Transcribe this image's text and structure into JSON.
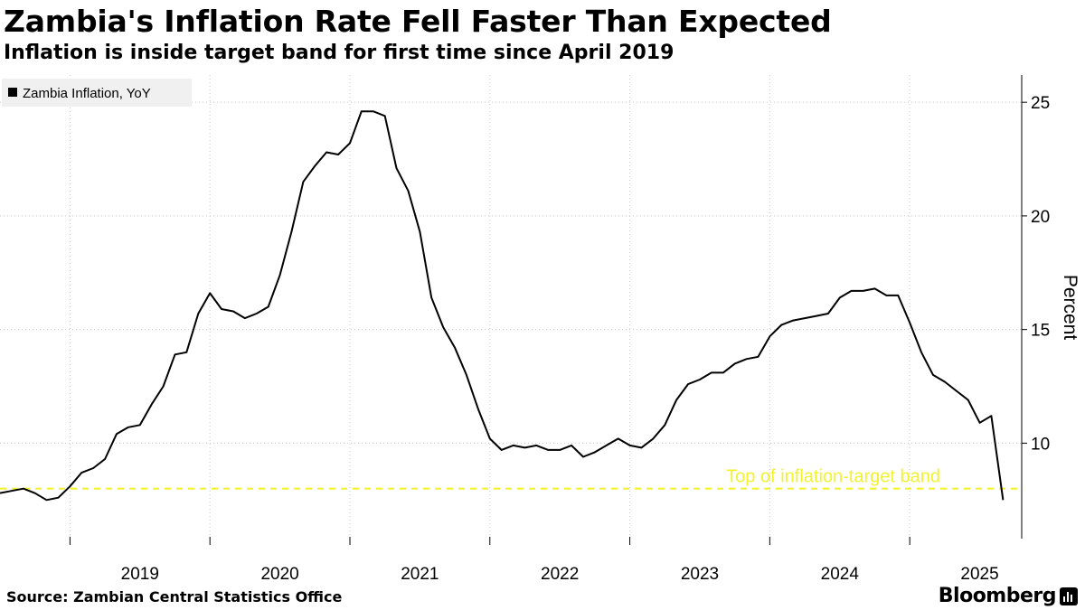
{
  "header": {
    "title": "Zambia's Inflation Rate Fell Faster Than Expected",
    "subtitle": "Inflation is inside target band for first time since April 2019"
  },
  "footer": {
    "source": "Source: Zambian Central Statistics Office",
    "brand": "Bloomberg"
  },
  "colors": {
    "line": "#000000",
    "target_band": "#f2f230",
    "grid": "#c8c8c8",
    "legend_bg": "#f0f0f0"
  },
  "chart_data": {
    "type": "line",
    "title": "Zambia's Inflation Rate Fell Faster Than Expected",
    "subtitle": "Inflation is inside target band for first time since April 2019",
    "xlabel": "",
    "ylabel": "Percent",
    "y_axis_position": "right",
    "ylim": [
      5.8,
      26.2
    ],
    "xlim": [
      2018.5,
      2025.8
    ],
    "yticks": [
      10,
      15,
      20,
      25
    ],
    "xtick_labels": [
      "2019",
      "2020",
      "2021",
      "2022",
      "2023",
      "2024",
      "2025"
    ],
    "legend": {
      "position": "top-left",
      "entries": [
        "Zambia Inflation, YoY"
      ]
    },
    "series": [
      {
        "name": "Zambia Inflation, YoY",
        "x": [
          2018.5,
          2018.583,
          2018.667,
          2018.75,
          2018.833,
          2018.917,
          2019.0,
          2019.083,
          2019.167,
          2019.25,
          2019.333,
          2019.417,
          2019.5,
          2019.583,
          2019.667,
          2019.75,
          2019.833,
          2019.917,
          2020.0,
          2020.083,
          2020.167,
          2020.25,
          2020.333,
          2020.417,
          2020.5,
          2020.583,
          2020.667,
          2020.75,
          2020.833,
          2020.917,
          2021.0,
          2021.083,
          2021.167,
          2021.25,
          2021.333,
          2021.417,
          2021.5,
          2021.583,
          2021.667,
          2021.75,
          2021.833,
          2021.917,
          2022.0,
          2022.083,
          2022.167,
          2022.25,
          2022.333,
          2022.417,
          2022.5,
          2022.583,
          2022.667,
          2022.75,
          2022.833,
          2022.917,
          2023.0,
          2023.083,
          2023.167,
          2023.25,
          2023.333,
          2023.417,
          2023.5,
          2023.583,
          2023.667,
          2023.75,
          2023.833,
          2023.917,
          2024.0,
          2024.083,
          2024.167,
          2024.25,
          2024.333,
          2024.417,
          2024.5,
          2024.583,
          2024.667,
          2024.75,
          2024.833,
          2024.917,
          2025.0,
          2025.083,
          2025.167,
          2025.25,
          2025.333,
          2025.417,
          2025.5,
          2025.583,
          2025.667
        ],
        "values": [
          7.8,
          7.9,
          8.0,
          7.8,
          7.5,
          7.6,
          8.1,
          8.7,
          8.9,
          9.3,
          10.4,
          10.7,
          10.8,
          11.7,
          12.5,
          13.9,
          14.0,
          15.7,
          16.6,
          15.9,
          15.8,
          15.5,
          15.7,
          16.0,
          17.4,
          19.3,
          21.5,
          22.2,
          22.8,
          22.7,
          23.2,
          24.6,
          24.6,
          24.4,
          22.1,
          21.1,
          19.3,
          16.4,
          15.1,
          14.2,
          13.0,
          11.5,
          10.2,
          9.7,
          9.9,
          9.8,
          9.9,
          9.7,
          9.7,
          9.9,
          9.4,
          9.6,
          9.9,
          10.2,
          9.9,
          9.8,
          10.2,
          10.8,
          11.9,
          12.6,
          12.8,
          13.1,
          13.1,
          13.5,
          13.7,
          13.8,
          14.7,
          15.2,
          15.4,
          15.5,
          15.6,
          15.7,
          16.4,
          16.7,
          16.7,
          16.8,
          16.5,
          16.5,
          15.3,
          14.0,
          13.0,
          12.7,
          12.3,
          11.9,
          10.9,
          11.2,
          7.5
        ]
      }
    ],
    "annotations": [
      {
        "text": "Top of inflation-target band",
        "y": 8.0,
        "style": "dashed"
      }
    ]
  }
}
